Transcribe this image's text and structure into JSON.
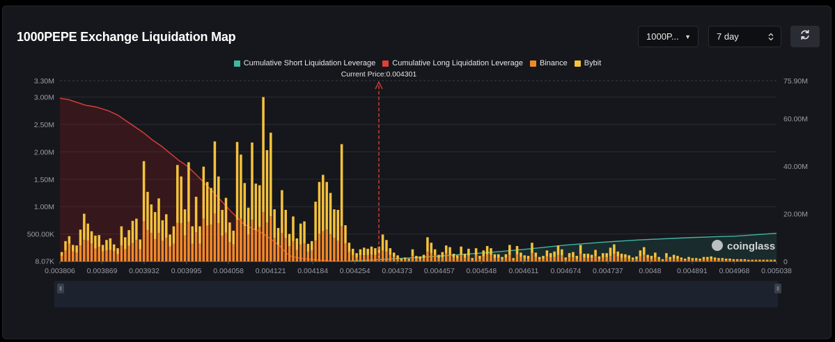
{
  "header": {
    "title": "1000PEPE Exchange Liquidation Map",
    "symbol_select": "1000P...",
    "range_select": "7 day"
  },
  "legend": [
    {
      "label": "Cumulative Short Liquidation Leverage",
      "color": "#3fb8a0"
    },
    {
      "label": "Cumulative Long Liquidation Leverage",
      "color": "#e0403a"
    },
    {
      "label": "Binance",
      "color": "#f08a2a"
    },
    {
      "label": "Bybit",
      "color": "#f5c23c"
    }
  ],
  "watermark": "coinglass",
  "chart_data": {
    "type": "bar",
    "current_price_label": "Current Price:0.004301",
    "current_price": 0.004301,
    "x_tick_labels": [
      "0.003806",
      "0.003869",
      "0.003932",
      "0.003995",
      "0.004058",
      "0.004121",
      "0.004184",
      "0.004254",
      "0.004373",
      "0.004457",
      "0.004548",
      "0.004611",
      "0.004674",
      "0.004737",
      "0.0048",
      "0.004891",
      "0.004968",
      "0.005038"
    ],
    "y_left_tick_labels": [
      "8.07K",
      "500.00K",
      "1.00M",
      "1.50M",
      "2.00M",
      "2.50M",
      "3.00M",
      "3.30M"
    ],
    "y_left_range": [
      8070,
      3300000
    ],
    "y_right_tick_labels": [
      "0",
      "20.00M",
      "40.00M",
      "60.00M",
      "75.90M"
    ],
    "y_right_range": [
      0,
      75900000
    ],
    "bar_totals_M": [
      0.17,
      0.37,
      0.46,
      0.3,
      0.29,
      0.58,
      0.87,
      0.69,
      0.55,
      0.47,
      0.48,
      0.3,
      0.39,
      0.42,
      0.31,
      0.24,
      0.64,
      0.44,
      0.57,
      0.74,
      0.78,
      0.4,
      1.83,
      1.27,
      1.04,
      0.9,
      1.15,
      0.75,
      0.86,
      0.49,
      0.64,
      1.76,
      1.55,
      0.95,
      1.81,
      0.64,
      1.18,
      0.64,
      1.73,
      1.45,
      1.34,
      2.19,
      1.55,
      0.94,
      1.16,
      0.71,
      0.56,
      2.18,
      1.95,
      1.43,
      0.98,
      2.17,
      1.42,
      1.39,
      3.0,
      2.03,
      2.35,
      0.95,
      0.61,
      1.3,
      0.94,
      0.5,
      0.82,
      0.42,
      0.69,
      0.73,
      0.32,
      0.37,
      1.09,
      1.45,
      1.58,
      1.45,
      1.25,
      0.95,
      0.94,
      2.14,
      0.66,
      0.34,
      0.23,
      0.15,
      0.22,
      0.25,
      0.23,
      0.27,
      0.24,
      0.27,
      0.49,
      0.39,
      0.24,
      0.16,
      0.11,
      0.05,
      0.07,
      0.05,
      0.22,
      0.1,
      0.09,
      0.12,
      0.44,
      0.34,
      0.22,
      0.12,
      0.17,
      0.29,
      0.26,
      0.14,
      0.11,
      0.27,
      0.14,
      0.23,
      0.06,
      0.24,
      0.1,
      0.2,
      0.28,
      0.24,
      0.13,
      0.13,
      0.08,
      0.13,
      0.3,
      0.06,
      0.28,
      0.16,
      0.11,
      0.1,
      0.34,
      0.16,
      0.08,
      0.1,
      0.2,
      0.15,
      0.18,
      0.29,
      0.22,
      0.07,
      0.15,
      0.17,
      0.1,
      0.3,
      0.14,
      0.14,
      0.12,
      0.21,
      0.09,
      0.15,
      0.15,
      0.25,
      0.31,
      0.18,
      0.14,
      0.13,
      0.11,
      0.07,
      0.09,
      0.2,
      0.26,
      0.12,
      0.1,
      0.16,
      0.08,
      0.04,
      0.15,
      0.08,
      0.12,
      0.1,
      0.07,
      0.05,
      0.08,
      0.06,
      0.06,
      0.05,
      0.08,
      0.08,
      0.09,
      0.07,
      0.06,
      0.06,
      0.05,
      0.05,
      0.04,
      0.04,
      0.04,
      0.04,
      0.03,
      0.03,
      0.03,
      0.03,
      0.03,
      0.03,
      0.03,
      0.03
    ],
    "binance_share": [
      0.6,
      0.55,
      0.7,
      0.6,
      0.55,
      0.5,
      0.45,
      0.55,
      0.6,
      0.5,
      0.55,
      0.6,
      0.5,
      0.5,
      0.6,
      0.55,
      0.45,
      0.5,
      0.5,
      0.45,
      0.5,
      0.55,
      0.4,
      0.45,
      0.5,
      0.45,
      0.45,
      0.5,
      0.5,
      0.55,
      0.5,
      0.4,
      0.45,
      0.5,
      0.4,
      0.5,
      0.45,
      0.5,
      0.45,
      0.45,
      0.5,
      0.4,
      0.45,
      0.5,
      0.45,
      0.5,
      0.55,
      0.35,
      0.4,
      0.45,
      0.5,
      0.35,
      0.4,
      0.45,
      0.3,
      0.35,
      0.35,
      0.45,
      0.5,
      0.4,
      0.45,
      0.55,
      0.45,
      0.5,
      0.45,
      0.45,
      0.55,
      0.55,
      0.35,
      0.35,
      0.35,
      0.4,
      0.4,
      0.45,
      0.4,
      0.3,
      0.5,
      0.5,
      0.5,
      0.45,
      0.5,
      0.45,
      0.5,
      0.45,
      0.5,
      0.5,
      0.4,
      0.45,
      0.5,
      0.5,
      0.45,
      0.5,
      0.5,
      0.5,
      0.45,
      0.5,
      0.5,
      0.5,
      0.4,
      0.45,
      0.5,
      0.5,
      0.45,
      0.5,
      0.45,
      0.5,
      0.5,
      0.45,
      0.5,
      0.45,
      0.5,
      0.5,
      0.5,
      0.45,
      0.45,
      0.5,
      0.45,
      0.5,
      0.5,
      0.5,
      0.4,
      0.5,
      0.45,
      0.5,
      0.5,
      0.5,
      0.45,
      0.5,
      0.5,
      0.5,
      0.45,
      0.5,
      0.45,
      0.4,
      0.5,
      0.5,
      0.5,
      0.45,
      0.5,
      0.45,
      0.5,
      0.45,
      0.5,
      0.45,
      0.5,
      0.45,
      0.5,
      0.4,
      0.45,
      0.5,
      0.45,
      0.5,
      0.45,
      0.5,
      0.5,
      0.45,
      0.45,
      0.5,
      0.5,
      0.45,
      0.5,
      0.5,
      0.45,
      0.5,
      0.45,
      0.5,
      0.5,
      0.5,
      0.5,
      0.5,
      0.5,
      0.5,
      0.5,
      0.5,
      0.5,
      0.5,
      0.5,
      0.5,
      0.5,
      0.5,
      0.5,
      0.5,
      0.5,
      0.5,
      0.5,
      0.5,
      0.5,
      0.5,
      0.5,
      0.5,
      0.5,
      0.5
    ],
    "cumulative_long_M": [
      [
        0.003806,
        68.5
      ],
      [
        0.00382,
        68.0
      ],
      [
        0.003835,
        66.8
      ],
      [
        0.00385,
        65.6
      ],
      [
        0.003869,
        64.8
      ],
      [
        0.00389,
        63.2
      ],
      [
        0.003905,
        61.5
      ],
      [
        0.00392,
        59.0
      ],
      [
        0.003932,
        57.0
      ],
      [
        0.00395,
        54.0
      ],
      [
        0.003965,
        51.0
      ],
      [
        0.00398,
        48.5
      ],
      [
        0.003995,
        45.5
      ],
      [
        0.00401,
        42.5
      ],
      [
        0.004025,
        40.0
      ],
      [
        0.00404,
        36.5
      ],
      [
        0.004058,
        32.0
      ],
      [
        0.00407,
        29.0
      ],
      [
        0.004085,
        25.0
      ],
      [
        0.0041,
        21.0
      ],
      [
        0.004121,
        16.0
      ],
      [
        0.004135,
        14.0
      ],
      [
        0.00415,
        12.5
      ],
      [
        0.004165,
        10.0
      ],
      [
        0.004184,
        6.5
      ],
      [
        0.004195,
        3.5
      ],
      [
        0.004205,
        2.0
      ],
      [
        0.004225,
        1.2
      ],
      [
        0.004254,
        0.5
      ],
      [
        0.00428,
        0.1
      ],
      [
        0.0043,
        0.0
      ]
    ],
    "cumulative_short_M": [
      [
        0.0043,
        0.0
      ],
      [
        0.004373,
        1.0
      ],
      [
        0.004457,
        2.2
      ],
      [
        0.004548,
        3.8
      ],
      [
        0.004611,
        5.2
      ],
      [
        0.004674,
        6.8
      ],
      [
        0.004737,
        8.0
      ],
      [
        0.0048,
        9.0
      ],
      [
        0.004891,
        10.0
      ],
      [
        0.004968,
        10.6
      ],
      [
        0.005038,
        11.8
      ]
    ],
    "x_range": [
      0.003806,
      0.005038
    ]
  }
}
